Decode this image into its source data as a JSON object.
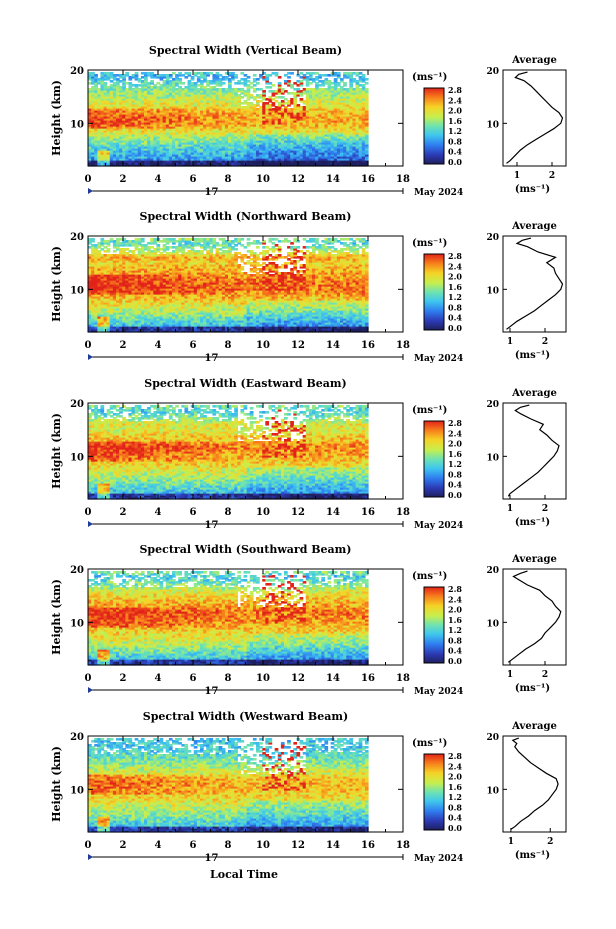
{
  "figure": {
    "x_axis_title": "Local Time",
    "date_label": "May 2024",
    "day_label": "17",
    "colorbar_unit": "(ms⁻¹)",
    "avg_xlabel": "(ms⁻¹)"
  },
  "chart_data": [
    {
      "type": "heatmap",
      "title": "Spectral Width (Vertical Beam)",
      "xlabel": "",
      "ylabel": "Height (km)",
      "xlim": [
        0,
        18
      ],
      "ylim": [
        2,
        20
      ],
      "xticks": [
        "0",
        "2",
        "4",
        "6",
        "8",
        "10",
        "12",
        "14",
        "16",
        "18"
      ],
      "yticks": [
        "20",
        "10"
      ],
      "data_end_hour": 16,
      "colorbar": {
        "unit": "(ms⁻¹)",
        "range": [
          0.0,
          2.8
        ],
        "ticks": [
          "2.8",
          "2.4",
          "2.0",
          "1.6",
          "1.2",
          "0.8",
          "0.4",
          "0.0"
        ]
      },
      "profile": {
        "title": "Average",
        "xlabel": "(ms⁻¹)",
        "xlim": [
          0.6,
          2.4
        ],
        "xticks": [
          1,
          2
        ],
        "yticks": [
          "20",
          "10"
        ],
        "points": [
          [
            0.7,
            2.5
          ],
          [
            0.8,
            3
          ],
          [
            0.95,
            4
          ],
          [
            1.1,
            5
          ],
          [
            1.3,
            6
          ],
          [
            1.55,
            7
          ],
          [
            1.8,
            8
          ],
          [
            2.05,
            9
          ],
          [
            2.25,
            10
          ],
          [
            2.3,
            11
          ],
          [
            2.2,
            12
          ],
          [
            2.0,
            13
          ],
          [
            1.85,
            14
          ],
          [
            1.7,
            15
          ],
          [
            1.55,
            16
          ],
          [
            1.4,
            17
          ],
          [
            1.2,
            18
          ],
          [
            0.95,
            18.6
          ],
          [
            1.05,
            19.2
          ],
          [
            1.3,
            19.6
          ]
        ]
      }
    },
    {
      "type": "heatmap",
      "title": "Spectral Width (Northward Beam)",
      "xlabel": "",
      "ylabel": "Height (km)",
      "xlim": [
        0,
        18
      ],
      "ylim": [
        2,
        20
      ],
      "xticks": [
        "0",
        "2",
        "4",
        "6",
        "8",
        "10",
        "12",
        "14",
        "16",
        "18"
      ],
      "yticks": [
        "20",
        "10"
      ],
      "data_end_hour": 16,
      "colorbar": {
        "unit": "(ms⁻¹)",
        "range": [
          0.0,
          2.8
        ],
        "ticks": [
          "2.8",
          "2.4",
          "2.0",
          "1.6",
          "1.2",
          "0.8",
          "0.4",
          "0.0"
        ]
      },
      "profile": {
        "title": "Average",
        "xlabel": "(ms⁻¹)",
        "xlim": [
          0.8,
          2.6
        ],
        "xticks": [
          1,
          2
        ],
        "yticks": [
          "20",
          "10"
        ],
        "points": [
          [
            0.9,
            2.5
          ],
          [
            1.0,
            3
          ],
          [
            1.2,
            4
          ],
          [
            1.45,
            5
          ],
          [
            1.7,
            6
          ],
          [
            1.9,
            7
          ],
          [
            2.1,
            8
          ],
          [
            2.3,
            9
          ],
          [
            2.45,
            10
          ],
          [
            2.5,
            11
          ],
          [
            2.4,
            12
          ],
          [
            2.3,
            13
          ],
          [
            2.25,
            14
          ],
          [
            2.05,
            15
          ],
          [
            2.3,
            16
          ],
          [
            1.8,
            17
          ],
          [
            1.5,
            18
          ],
          [
            1.2,
            18.6
          ],
          [
            1.35,
            19.2
          ],
          [
            1.6,
            19.6
          ]
        ]
      }
    },
    {
      "type": "heatmap",
      "title": "Spectral Width (Eastward Beam)",
      "xlabel": "",
      "ylabel": "Height (km)",
      "xlim": [
        0,
        18
      ],
      "ylim": [
        2,
        20
      ],
      "xticks": [
        "0",
        "2",
        "4",
        "6",
        "8",
        "10",
        "12",
        "14",
        "16",
        "18"
      ],
      "yticks": [
        "20",
        "10"
      ],
      "data_end_hour": 16,
      "colorbar": {
        "unit": "(ms⁻¹)",
        "range": [
          0.0,
          2.8
        ],
        "ticks": [
          "2.8",
          "2.4",
          "2.0",
          "1.6",
          "1.2",
          "0.8",
          "0.4",
          "0.0"
        ]
      },
      "profile": {
        "title": "Average",
        "xlabel": "(ms⁻¹)",
        "xlim": [
          0.8,
          2.6
        ],
        "xticks": [
          1,
          2
        ],
        "yticks": [
          "20",
          "10"
        ],
        "points": [
          [
            0.95,
            2.5
          ],
          [
            1.0,
            3
          ],
          [
            1.2,
            4
          ],
          [
            1.4,
            5
          ],
          [
            1.6,
            6
          ],
          [
            1.8,
            7
          ],
          [
            1.95,
            8
          ],
          [
            2.1,
            9
          ],
          [
            2.25,
            10
          ],
          [
            2.35,
            11
          ],
          [
            2.4,
            12
          ],
          [
            2.2,
            13
          ],
          [
            2.05,
            14
          ],
          [
            1.85,
            15
          ],
          [
            1.95,
            16
          ],
          [
            1.6,
            17
          ],
          [
            1.3,
            18
          ],
          [
            1.15,
            18.6
          ],
          [
            1.3,
            19.2
          ],
          [
            1.55,
            19.6
          ]
        ]
      }
    },
    {
      "type": "heatmap",
      "title": "Spectral Width (Southward Beam)",
      "xlabel": "",
      "ylabel": "Height (km)",
      "xlim": [
        0,
        18
      ],
      "ylim": [
        2,
        20
      ],
      "xticks": [
        "0",
        "2",
        "4",
        "6",
        "8",
        "10",
        "12",
        "14",
        "16",
        "18"
      ],
      "yticks": [
        "20",
        "10"
      ],
      "data_end_hour": 16,
      "colorbar": {
        "unit": "(ms⁻¹)",
        "range": [
          0.0,
          2.8
        ],
        "ticks": [
          "2.8",
          "2.4",
          "2.0",
          "1.6",
          "1.2",
          "0.8",
          "0.4",
          "0.0"
        ]
      },
      "profile": {
        "title": "Average",
        "xlabel": "(ms⁻¹)",
        "xlim": [
          0.8,
          2.6
        ],
        "xticks": [
          1,
          2
        ],
        "yticks": [
          "20",
          "10"
        ],
        "points": [
          [
            0.95,
            2.5
          ],
          [
            1.05,
            3
          ],
          [
            1.25,
            4
          ],
          [
            1.45,
            5
          ],
          [
            1.7,
            6
          ],
          [
            1.9,
            7
          ],
          [
            2.0,
            8
          ],
          [
            2.15,
            9
          ],
          [
            2.3,
            10
          ],
          [
            2.4,
            11
          ],
          [
            2.45,
            12
          ],
          [
            2.3,
            13
          ],
          [
            2.2,
            14
          ],
          [
            2.0,
            15
          ],
          [
            1.85,
            16
          ],
          [
            1.5,
            17
          ],
          [
            1.25,
            18
          ],
          [
            1.1,
            18.6
          ],
          [
            1.3,
            19.2
          ],
          [
            1.5,
            19.6
          ]
        ]
      }
    },
    {
      "type": "heatmap",
      "title": "Spectral Width (Westward Beam)",
      "xlabel": "Local Time",
      "ylabel": "Height (km)",
      "xlim": [
        0,
        18
      ],
      "ylim": [
        2,
        20
      ],
      "xticks": [
        "0",
        "2",
        "4",
        "6",
        "8",
        "10",
        "12",
        "14",
        "16",
        "18"
      ],
      "yticks": [
        "20",
        "10"
      ],
      "data_end_hour": 16,
      "colorbar": {
        "unit": "(ms⁻¹)",
        "range": [
          0.0,
          2.8
        ],
        "ticks": [
          "2.8",
          "2.4",
          "2.0",
          "1.6",
          "1.2",
          "0.8",
          "0.4",
          "0.0"
        ]
      },
      "profile": {
        "title": "Average",
        "xlabel": "(ms⁻¹)",
        "xlim": [
          0.8,
          2.4
        ],
        "xticks": [
          1,
          2
        ],
        "yticks": [
          "20",
          "10"
        ],
        "points": [
          [
            1.0,
            2.5
          ],
          [
            1.1,
            3
          ],
          [
            1.25,
            4
          ],
          [
            1.45,
            5
          ],
          [
            1.6,
            6
          ],
          [
            1.8,
            7
          ],
          [
            1.95,
            8
          ],
          [
            2.05,
            9
          ],
          [
            2.15,
            10
          ],
          [
            2.2,
            11
          ],
          [
            2.15,
            12
          ],
          [
            1.9,
            13
          ],
          [
            1.7,
            14
          ],
          [
            1.5,
            15
          ],
          [
            1.35,
            16
          ],
          [
            1.2,
            17
          ],
          [
            1.1,
            18
          ],
          [
            1.15,
            18.6
          ],
          [
            1.05,
            19.2
          ],
          [
            1.2,
            19.6
          ]
        ]
      }
    }
  ]
}
